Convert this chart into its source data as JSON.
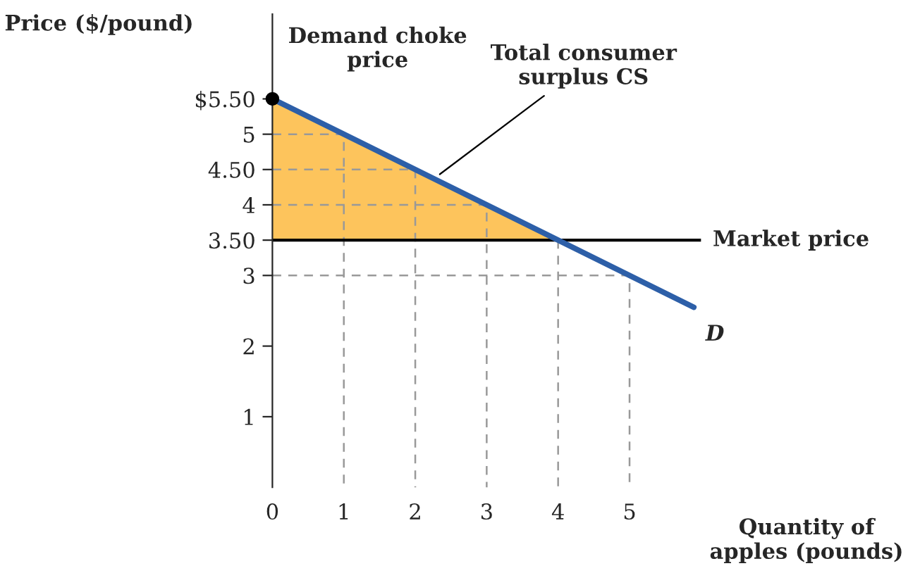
{
  "chart_data": {
    "type": "line",
    "xlabel": "Quantity of apples (pounds)",
    "ylabel": "Price ($/pound)",
    "xlim": [
      0,
      6.0
    ],
    "ylim": [
      0,
      6.7
    ],
    "xticks": [
      {
        "value": 0,
        "label": "0"
      },
      1,
      2,
      3,
      4,
      5
    ],
    "yticks": [
      1,
      2,
      3,
      {
        "value": 3.5,
        "label": "3.50"
      },
      4,
      {
        "value": 4.5,
        "label": "4.50"
      },
      5,
      {
        "value": 5.5,
        "label": "$5.50"
      }
    ],
    "series": [
      {
        "type": "area",
        "color": "#fdc45c",
        "x": [
          0,
          1,
          2,
          3,
          4
        ],
        "values": [
          5.5,
          5,
          4.5,
          4,
          3.5
        ]
      },
      {
        "color": "#999999",
        "line_style": "dashed",
        "x": [
          0,
          1,
          1
        ],
        "values": [
          5,
          5,
          0
        ]
      },
      {
        "color": "#999999",
        "line_style": "dashed",
        "x": [
          0,
          2,
          2
        ],
        "values": [
          4.5,
          4.5,
          0
        ]
      },
      {
        "color": "#999999",
        "line_style": "dashed",
        "x": [
          0,
          3,
          3
        ],
        "values": [
          4,
          4,
          0
        ]
      },
      {
        "color": "#999999",
        "line_style": "dashed",
        "x": [
          0,
          4,
          4
        ],
        "values": [
          3.5,
          3.5,
          0
        ]
      },
      {
        "color": "#999999",
        "line_style": "dashed",
        "x": [
          0,
          5,
          5
        ],
        "values": [
          3,
          3,
          0
        ]
      },
      {
        "color": "#2d5fa8",
        "line_style": "solid",
        "x": [
          0,
          5.9
        ],
        "values": [
          5.5,
          2.55
        ]
      }
    ],
    "ref_lines": [
      {
        "axis": "y",
        "value": 3.5,
        "label": "Market price",
        "color": "#000000",
        "line_style": "solid"
      }
    ],
    "annotations": [
      {
        "text": "Demand choke price",
        "x": 0,
        "y": 5.5
      },
      {
        "text": "Total consumer surplus CS",
        "x": 2.3,
        "y": 4.4
      },
      {
        "text": "D",
        "x": 5.9,
        "y": 2.55
      }
    ],
    "grid": false,
    "legend": false
  }
}
